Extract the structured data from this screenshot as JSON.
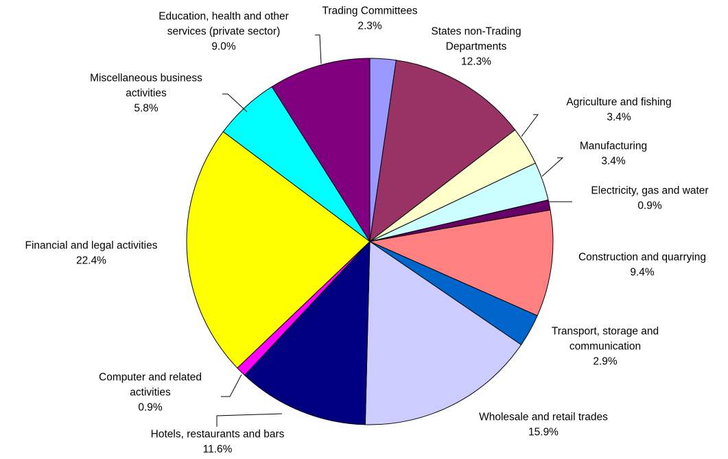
{
  "chart_data": {
    "type": "pie",
    "start_angle_deg": 0,
    "direction": "clockwise",
    "series": [
      {
        "category": "Trading Committees",
        "value": 2.3,
        "label": "2.3%",
        "color": "#9999FF",
        "label_lines": [
          "Trading Committees"
        ]
      },
      {
        "category": "States non-Trading Departments",
        "value": 12.3,
        "label": "12.3%",
        "color": "#993366",
        "label_lines": [
          "States non-Trading",
          "Departments"
        ]
      },
      {
        "category": "Agriculture and fishing",
        "value": 3.4,
        "label": "3.4%",
        "color": "#FFFFCC",
        "label_lines": [
          "Agriculture and fishing"
        ]
      },
      {
        "category": "Manufacturing",
        "value": 3.4,
        "label": "3.4%",
        "color": "#CCFFFF",
        "label_lines": [
          "Manufacturing"
        ]
      },
      {
        "category": "Electricity, gas and water",
        "value": 0.9,
        "label": "0.9%",
        "color": "#660066",
        "label_lines": [
          "Electricity, gas and water"
        ]
      },
      {
        "category": "Construction and quarrying",
        "value": 9.4,
        "label": "9.4%",
        "color": "#FF8080",
        "label_lines": [
          "Construction and quarrying"
        ]
      },
      {
        "category": "Transport, storage and communication",
        "value": 2.9,
        "label": "2.9%",
        "color": "#0066CC",
        "label_lines": [
          "Transport, storage and",
          "communication"
        ]
      },
      {
        "category": "Wholesale and retail trades",
        "value": 15.9,
        "label": "15.9%",
        "color": "#CCCCFF",
        "label_lines": [
          "Wholesale and retail trades"
        ]
      },
      {
        "category": "Hotels, restaurants and bars",
        "value": 11.6,
        "label": "11.6%",
        "color": "#000080",
        "label_lines": [
          "Hotels, restaurants and bars"
        ]
      },
      {
        "category": "Computer and related activities",
        "value": 0.9,
        "label": "0.9%",
        "color": "#FF00FF",
        "label_lines": [
          "Computer and related",
          "activities"
        ]
      },
      {
        "category": "Financial and legal activities",
        "value": 22.4,
        "label": "22.4%",
        "color": "#FFFF00",
        "label_lines": [
          "Financial and legal activities"
        ]
      },
      {
        "category": "Miscellaneous business activities",
        "value": 5.8,
        "label": "5.8%",
        "color": "#00FFFF",
        "label_lines": [
          "Miscellaneous business",
          "activities"
        ]
      },
      {
        "category": "Education, health and other services (private sector)",
        "value": 9.0,
        "label": "9.0%",
        "color": "#800080",
        "label_lines": [
          "Education, health and other",
          "services (private sector)"
        ]
      }
    ]
  }
}
